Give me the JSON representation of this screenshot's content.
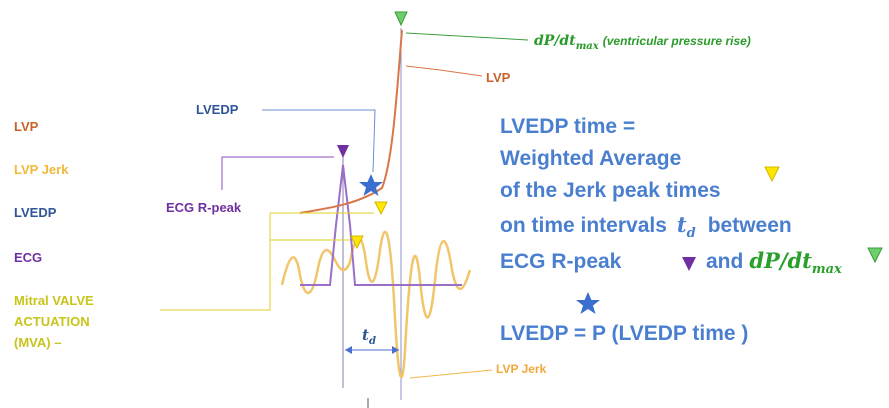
{
  "legend": [
    "LVP",
    "LVP Jerk",
    "LVEDP",
    "ECG",
    "Mitral VALVE",
    "ACTUATION",
    "(MVA) –"
  ],
  "labels": {
    "lvedp": "LVEDP",
    "ecg_r_peak": "ECG R-peak",
    "dpdt": "dP/dt",
    "dpdt_sub": "max",
    "dpdt_note": "(ventricular pressure rise)",
    "lvp": "LVP",
    "td": "t",
    "td_sub": "d",
    "lvp_jerk": "LVP Jerk"
  },
  "formula": {
    "line1": "LVEDP time =",
    "line2": "Weighted Average",
    "line3": "of the Jerk peak times",
    "line4a": "on time intervals",
    "line4_math": "t",
    "line4_sub": "d",
    "line4b": "between",
    "line5a": "ECG R-peak",
    "line5b": "and",
    "line5_math": "dP/dt",
    "line5_sub": "max",
    "line6": "LVEDP =  P (LVEDP time )"
  }
}
